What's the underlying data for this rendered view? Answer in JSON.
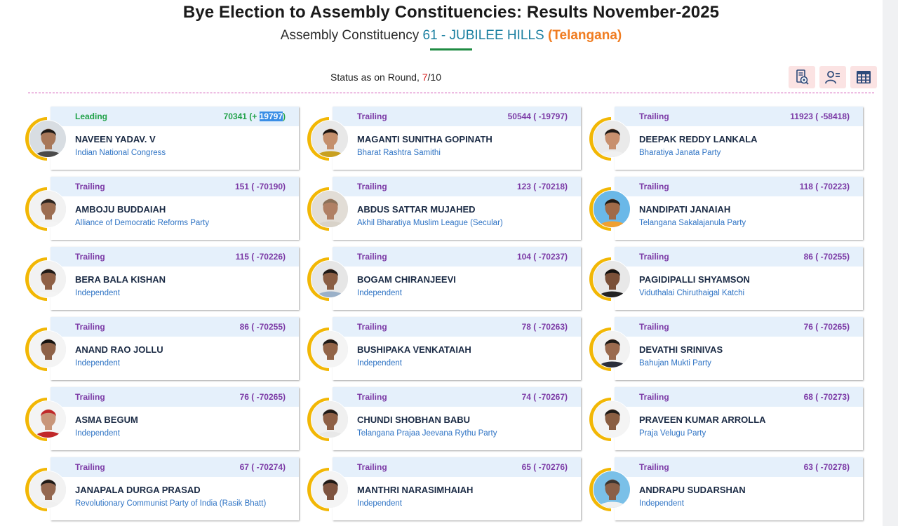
{
  "header": {
    "title": "Bye Election to Assembly Constituencies: Results November-2025",
    "subtitle_prefix": "Assembly Constituency",
    "constituency": "61 - JUBILEE HILLS",
    "state": "(Telangana)"
  },
  "status": {
    "prefix": "Status as on Round, ",
    "current_round": "7",
    "total_rounds": "/10"
  },
  "toolbar": {
    "icons": [
      "trend-report-icon",
      "candidate-list-icon",
      "table-view-icon"
    ]
  },
  "colors": {
    "leading": "#22a24a",
    "trailing": "#7c3aa6",
    "party": "#2e73c4",
    "ring": "#f2b705",
    "card_head": "#e5f0fb"
  },
  "candidates": [
    {
      "status": "Leading",
      "votes": "70341 (+ ",
      "votes_hl": "19797",
      "votes_end": ")",
      "name": "NAVEEN YADAV. V",
      "party": "Indian National Congress",
      "skin": "#a8785a",
      "hair": "#1e1a17",
      "shirt": "#4a4a4a",
      "bg": "#d8dde2"
    },
    {
      "status": "Trailing",
      "votes": "50544 ( -19797)",
      "votes_hl": "",
      "votes_end": "",
      "name": "MAGANTI SUNITHA GOPINATH",
      "party": "Bharat Rashtra Samithi",
      "skin": "#c48f6c",
      "hair": "#1a1410",
      "shirt": "#c8a020",
      "bg": "#e8e8e8"
    },
    {
      "status": "Trailing",
      "votes": "11923 ( -58418)",
      "votes_hl": "",
      "votes_end": "",
      "name": "DEEPAK REDDY LANKALA",
      "party": "Bharatiya Janata Party",
      "skin": "#c8906e",
      "hair": "#1f1a17",
      "shirt": "#f0f0f0",
      "bg": "#eaeaea"
    },
    {
      "status": "Trailing",
      "votes": "151 ( -70190)",
      "votes_hl": "",
      "votes_end": "",
      "name": "AMBOJU BUDDAIAH",
      "party": "Alliance of Democratic Reforms Party",
      "skin": "#9c6e52",
      "hair": "#2a2420",
      "shirt": "#f4f4f4",
      "bg": "#f2f2f2"
    },
    {
      "status": "Trailing",
      "votes": "123 ( -70218)",
      "votes_hl": "",
      "votes_end": "",
      "name": "ABDUS SATTAR MUJAHED",
      "party": "Akhil Bharatiya Muslim League (Secular)",
      "skin": "#b08064",
      "hair": "#8a7058",
      "shirt": "#d8d2c8",
      "bg": "#e2ddd6"
    },
    {
      "status": "Trailing",
      "votes": "118 ( -70223)",
      "votes_hl": "",
      "votes_end": "",
      "name": "NANDIPATI JANAIAH",
      "party": "Telangana Sakalajanula Party",
      "skin": "#a06a48",
      "hair": "#1e1a17",
      "shirt": "#f0a030",
      "bg": "#6ab8e8"
    },
    {
      "status": "Trailing",
      "votes": "115 ( -70226)",
      "votes_hl": "",
      "votes_end": "",
      "name": "BERA BALA KISHAN",
      "party": "Independent",
      "skin": "#8e6046",
      "hair": "#1e1a17",
      "shirt": "#f4f4f4",
      "bg": "#f2f2f2"
    },
    {
      "status": "Trailing",
      "votes": "104 ( -70237)",
      "votes_hl": "",
      "votes_end": "",
      "name": "BOGAM CHIRANJEEVI",
      "party": "Independent",
      "skin": "#8a5e44",
      "hair": "#1e1a17",
      "shirt": "#9ab0c8",
      "bg": "#e6e6e6"
    },
    {
      "status": "Trailing",
      "votes": "86 ( -70255)",
      "votes_hl": "",
      "votes_end": "",
      "name": "PAGIDIPALLI SHYAMSON",
      "party": "Viduthalai Chiruthaigal Katchi",
      "skin": "#7a5038",
      "hair": "#141210",
      "shirt": "#222222",
      "bg": "#e8e8e8"
    },
    {
      "status": "Trailing",
      "votes": "86 ( -70255)",
      "votes_hl": "",
      "votes_end": "",
      "name": "ANAND RAO JOLLU",
      "party": "Independent",
      "skin": "#8e6248",
      "hair": "#141210",
      "shirt": "#f4f4f4",
      "bg": "#f4f4f4"
    },
    {
      "status": "Trailing",
      "votes": "78 ( -70263)",
      "votes_hl": "",
      "votes_end": "",
      "name": "BUSHIPAKA VENKATAIAH",
      "party": "Independent",
      "skin": "#926448",
      "hair": "#1e1a17",
      "shirt": "#f4f4f4",
      "bg": "#f4f4f4"
    },
    {
      "status": "Trailing",
      "votes": "76 ( -70265)",
      "votes_hl": "",
      "votes_end": "",
      "name": "DEVATHI SRINIVAS",
      "party": "Bahujan Mukti Party",
      "skin": "#9a6a4e",
      "hair": "#1e1a17",
      "shirt": "#2a2e3a",
      "bg": "#f2f2f2"
    },
    {
      "status": "Trailing",
      "votes": "76 ( -70265)",
      "votes_hl": "",
      "votes_end": "",
      "name": "ASMA BEGUM",
      "party": "Independent",
      "skin": "#c8967a",
      "hair": "#c0282a",
      "shirt": "#c0282a",
      "bg": "#f4f4f4"
    },
    {
      "status": "Trailing",
      "votes": "74 ( -70267)",
      "votes_hl": "",
      "votes_end": "",
      "name": "CHUNDI SHOBHAN BABU",
      "party": "Telangana Prajaa Jeevana Rythu Party",
      "skin": "#8e6046",
      "hair": "#1e1a17",
      "shirt": "#e8e8e8",
      "bg": "#f0f0f0"
    },
    {
      "status": "Trailing",
      "votes": "68 ( -70273)",
      "votes_hl": "",
      "votes_end": "",
      "name": "PRAVEEN KUMAR ARROLLA",
      "party": "Praja Velugu Party",
      "skin": "#8a5e42",
      "hair": "#1e1a17",
      "shirt": "#f4f4f4",
      "bg": "#f4f4f4"
    },
    {
      "status": "Trailing",
      "votes": "67 ( -70274)",
      "votes_hl": "",
      "votes_end": "",
      "name": "JANAPALA DURGA PRASAD",
      "party": "Revolutionary Communist Party of India (Rasik Bhatt)",
      "skin": "#946850",
      "hair": "#1e1a17",
      "shirt": "#f0f0f0",
      "bg": "#f2f2f2"
    },
    {
      "status": "Trailing",
      "votes": "65 ( -70276)",
      "votes_hl": "",
      "votes_end": "",
      "name": "MANTHRI NARASIMHAIAH",
      "party": "Independent",
      "skin": "#7e5440",
      "hair": "#1e1a17",
      "shirt": "#f4f4f4",
      "bg": "#f4f4f4"
    },
    {
      "status": "Trailing",
      "votes": "63 ( -70278)",
      "votes_hl": "",
      "votes_end": "",
      "name": "ANDRAPU SUDARSHAN",
      "party": "Independent",
      "skin": "#8a6048",
      "hair": "#3a3430",
      "shirt": "#f0f0f0",
      "bg": "#7ac0e8"
    }
  ]
}
